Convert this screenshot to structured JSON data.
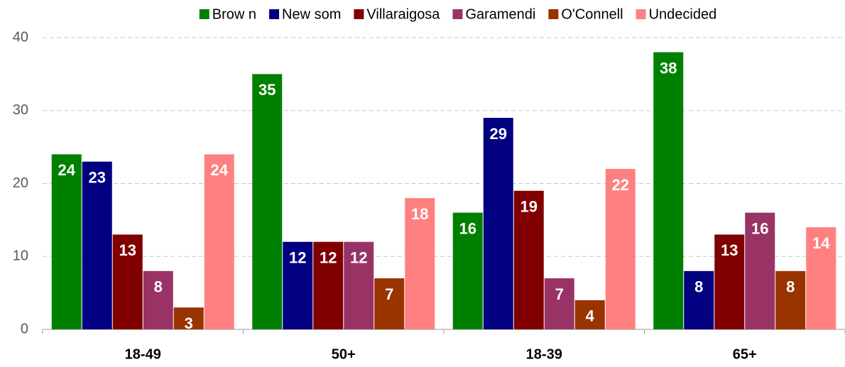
{
  "chart_data": {
    "type": "bar",
    "categories": [
      "18-49",
      "50+",
      "18-39",
      "65+"
    ],
    "series": [
      {
        "name": "Brow n",
        "color": "#008000",
        "values": [
          24,
          35,
          16,
          38
        ]
      },
      {
        "name": "New som",
        "color": "#000080",
        "values": [
          23,
          12,
          29,
          8
        ]
      },
      {
        "name": "Villaraigosa",
        "color": "#800000",
        "values": [
          13,
          12,
          19,
          13
        ]
      },
      {
        "name": "Garamendi",
        "color": "#993366",
        "values": [
          8,
          12,
          7,
          16
        ]
      },
      {
        "name": "O'Connell",
        "color": "#993300",
        "values": [
          3,
          7,
          4,
          8
        ]
      },
      {
        "name": "Undecided",
        "color": "#ff8080",
        "values": [
          24,
          18,
          22,
          14
        ]
      }
    ],
    "ylim": [
      0,
      40
    ],
    "yticks": [
      0,
      10,
      20,
      30,
      40
    ],
    "grid": true,
    "legend": "top"
  }
}
